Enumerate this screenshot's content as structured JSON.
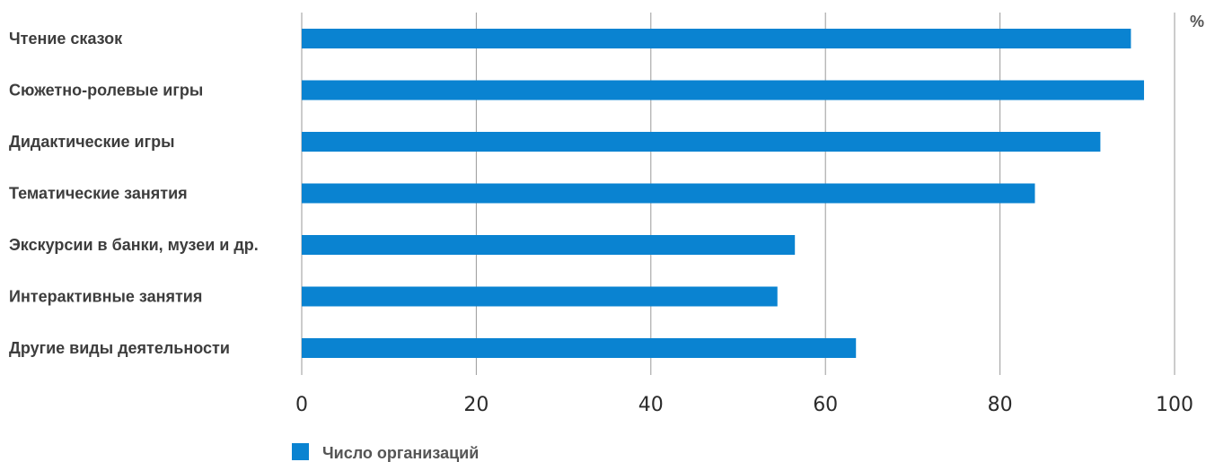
{
  "chart_data": {
    "type": "bar",
    "orientation": "horizontal",
    "categories": [
      "Чтение сказок",
      "Сюжетно-ролевые игры",
      "Дидактические игры",
      "Тематические занятия",
      "Экскурсии в банки, музеи и др.",
      "Интерактивные занятия",
      "Другие виды деятельности"
    ],
    "series": [
      {
        "name": "Число организаций",
        "color": "#0a83d1",
        "values": [
          95,
          96.5,
          91.5,
          84,
          56.5,
          54.5,
          63.5
        ]
      }
    ],
    "xlim": [
      0,
      100
    ],
    "xticks": [
      0,
      20,
      40,
      60,
      80,
      100
    ],
    "unit": "%",
    "grid": "vertical",
    "legend": "bottom-left"
  }
}
